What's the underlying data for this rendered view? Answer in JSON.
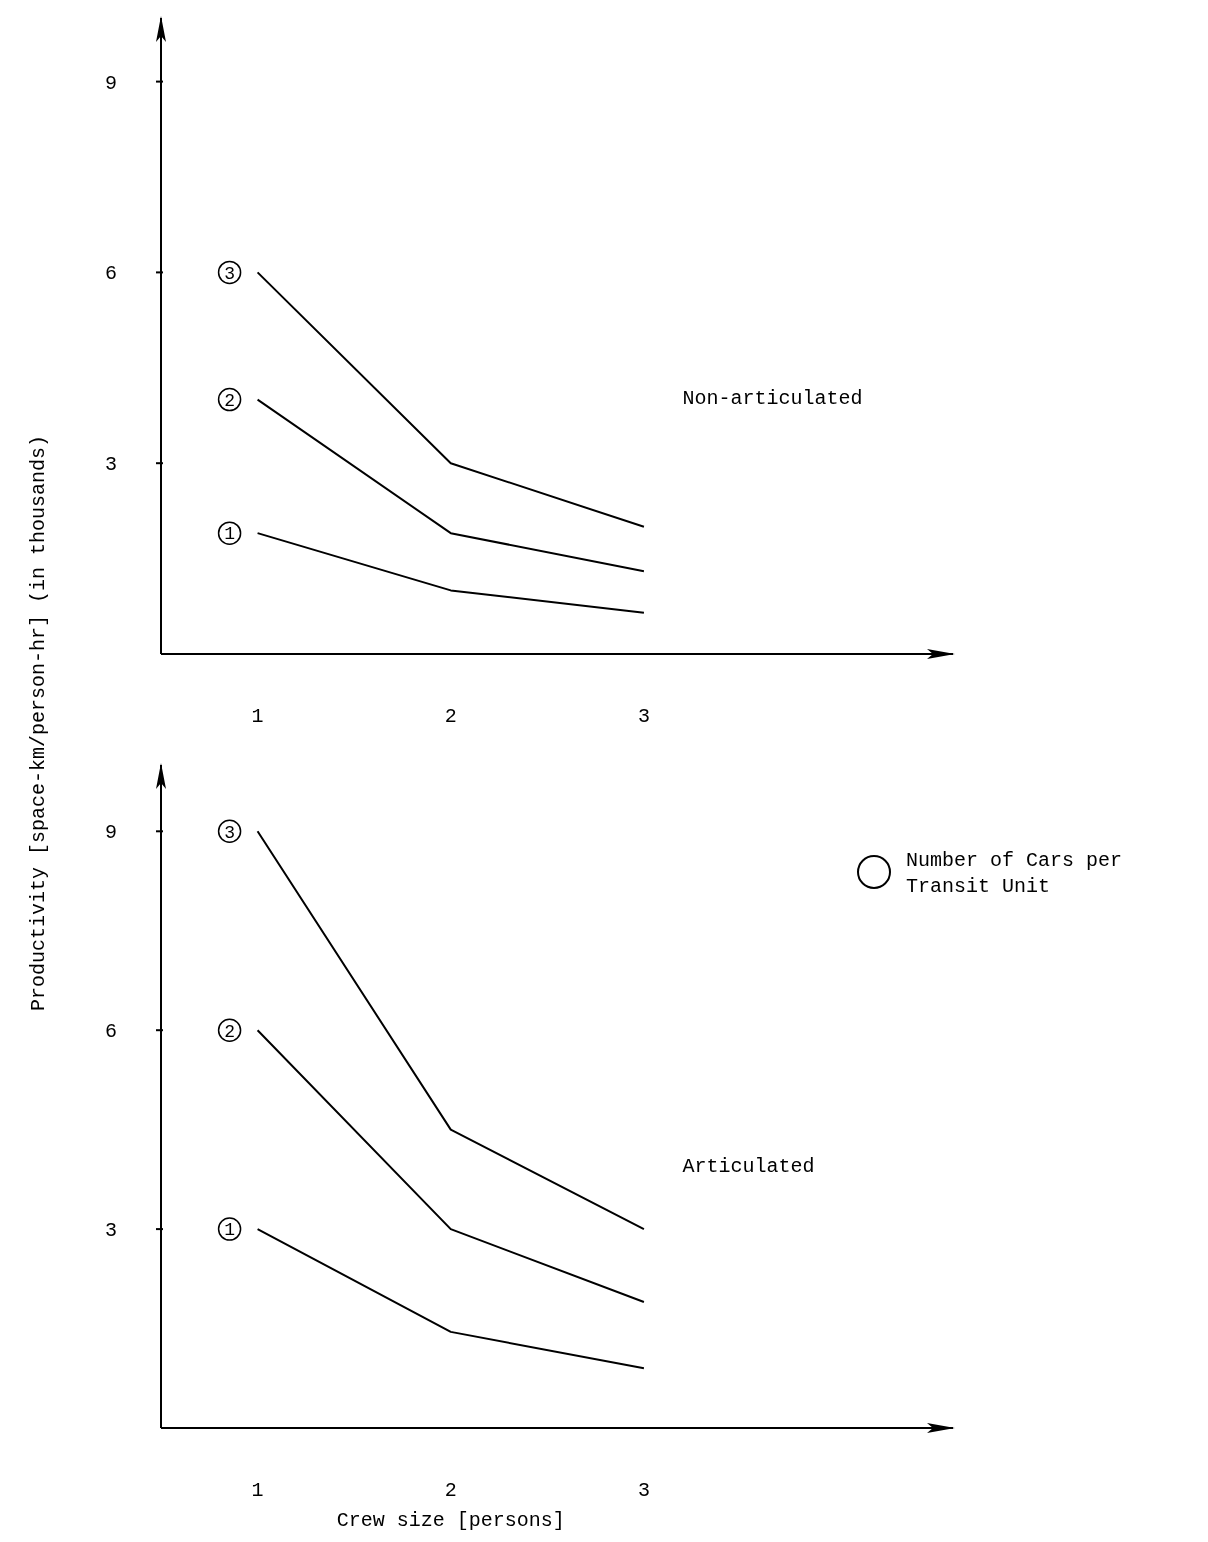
{
  "chart_data": [
    {
      "type": "line",
      "ylabel": "Productivity [space-km/person-hr]    (in thousands)",
      "x": [
        1,
        2,
        3
      ],
      "xlim": [
        0.5,
        4.6
      ],
      "xticks": [
        1,
        2,
        3
      ],
      "ylim": [
        0,
        10
      ],
      "yticks": [
        3,
        6,
        9
      ],
      "grid": false,
      "line_style": "solid",
      "annotations": [
        "Non-articulated"
      ],
      "series": [
        {
          "name": "3",
          "color": "#000000",
          "values": [
            6,
            3,
            2
          ]
        },
        {
          "name": "2",
          "color": "#000000",
          "values": [
            4,
            1.9,
            1.3
          ]
        },
        {
          "name": "1",
          "color": "#000000",
          "values": [
            1.9,
            1,
            0.65
          ]
        }
      ]
    },
    {
      "type": "line",
      "xlabel": "Crew size [persons]",
      "x": [
        1,
        2,
        3
      ],
      "xlim": [
        0.5,
        4.6
      ],
      "xticks": [
        1,
        2,
        3
      ],
      "ylim": [
        0,
        10
      ],
      "yticks": [
        3,
        6,
        9
      ],
      "grid": false,
      "line_style": "solid",
      "annotations": [
        "Articulated",
        "Number of Cars per Transit Unit"
      ],
      "series": [
        {
          "name": "3",
          "color": "#000000",
          "values": [
            9,
            4.5,
            3
          ]
        },
        {
          "name": "2",
          "color": "#000000",
          "values": [
            6,
            3,
            1.9
          ]
        },
        {
          "name": "1",
          "color": "#000000",
          "values": [
            3,
            1.45,
            0.9
          ]
        }
      ]
    }
  ]
}
